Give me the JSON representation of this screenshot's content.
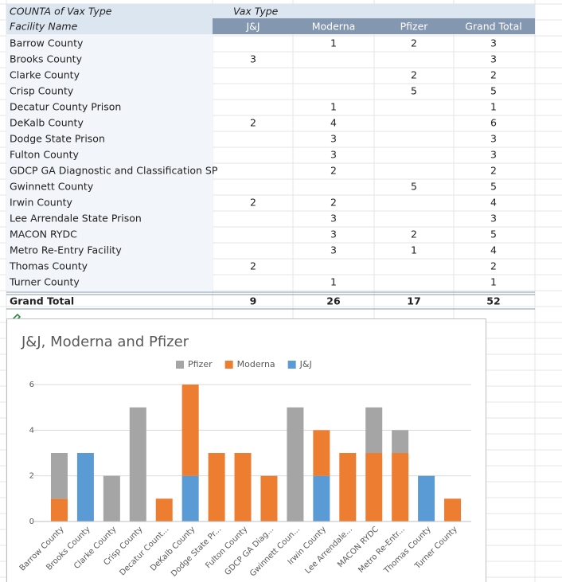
{
  "table": {
    "corner": "COUNTA of Vax Type",
    "column_field": "Vax Type",
    "row_field": "Facility Name",
    "columns": [
      "J&J",
      "Moderna",
      "Pfizer",
      "Grand Total"
    ],
    "rows": [
      {
        "name": "Barrow County",
        "values": [
          null,
          1,
          2,
          3
        ]
      },
      {
        "name": "Brooks County",
        "values": [
          3,
          null,
          null,
          3
        ]
      },
      {
        "name": "Clarke County",
        "values": [
          null,
          null,
          2,
          2
        ]
      },
      {
        "name": "Crisp County",
        "values": [
          null,
          null,
          5,
          5
        ]
      },
      {
        "name": "Decatur County Prison",
        "values": [
          null,
          1,
          null,
          1
        ]
      },
      {
        "name": "DeKalb County",
        "values": [
          2,
          4,
          null,
          6
        ]
      },
      {
        "name": "Dodge State Prison",
        "values": [
          null,
          3,
          null,
          3
        ]
      },
      {
        "name": "Fulton County",
        "values": [
          null,
          3,
          null,
          3
        ]
      },
      {
        "name": "GDCP GA Diagnostic and Classification SP",
        "values": [
          null,
          2,
          null,
          2
        ]
      },
      {
        "name": "Gwinnett County",
        "values": [
          null,
          null,
          5,
          5
        ]
      },
      {
        "name": "Irwin County",
        "values": [
          2,
          2,
          null,
          4
        ]
      },
      {
        "name": "Lee Arrendale State Prison",
        "values": [
          null,
          3,
          null,
          3
        ]
      },
      {
        "name": "MACON RYDC",
        "values": [
          null,
          3,
          2,
          5
        ]
      },
      {
        "name": "Metro Re-Entry Facility",
        "values": [
          null,
          3,
          1,
          4
        ]
      },
      {
        "name": "Thomas County",
        "values": [
          2,
          null,
          null,
          2
        ]
      },
      {
        "name": "Turner County",
        "values": [
          null,
          1,
          null,
          1
        ]
      }
    ],
    "total": {
      "name": "Grand Total",
      "values": [
        9,
        26,
        17,
        52
      ]
    }
  },
  "chart_data": {
    "type": "bar",
    "stacked": true,
    "title": "J&J, Moderna and Pfizer",
    "categories": [
      "Barrow County",
      "Brooks County",
      "Clarke County",
      "Crisp County",
      "Decatur Count...",
      "DeKalb County",
      "Dodge State Pr...",
      "Fulton County",
      "GDCP GA Diag...",
      "Gwinnett Coun...",
      "Irwin County",
      "Lee Arrendale...",
      "MACON RYDC",
      "Metro Re-Entr...",
      "Thomas County",
      "Turner County"
    ],
    "series": [
      {
        "name": "Pfizer",
        "color": "#a5a5a5",
        "values": [
          2,
          null,
          2,
          5,
          null,
          null,
          null,
          null,
          null,
          5,
          null,
          null,
          2,
          1,
          null,
          null
        ]
      },
      {
        "name": "Moderna",
        "color": "#ed7d31",
        "values": [
          1,
          null,
          null,
          null,
          1,
          4,
          3,
          3,
          2,
          null,
          2,
          3,
          3,
          3,
          null,
          1
        ]
      },
      {
        "name": "J&J",
        "color": "#5b9bd5",
        "values": [
          null,
          3,
          null,
          null,
          null,
          2,
          null,
          null,
          null,
          null,
          2,
          null,
          null,
          null,
          2,
          null
        ]
      }
    ],
    "ylim": [
      0,
      6
    ],
    "yticks": [
      0,
      2,
      4,
      6
    ],
    "grid": true,
    "legend": "top"
  }
}
